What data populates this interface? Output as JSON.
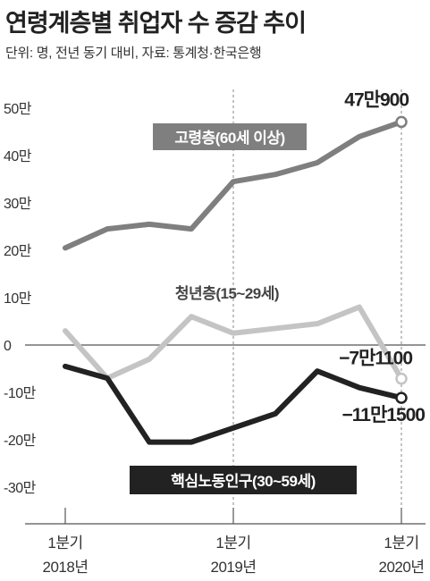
{
  "title": "연령계층별 취업자 수 증감 추이",
  "subtitle": "단위: 명, 전년 동기 대비, 자료: 통계청·한국은행",
  "chart_data": {
    "type": "line",
    "ylim": [
      -35,
      55
    ],
    "yticks": [
      {
        "value": 50,
        "label": "50만"
      },
      {
        "value": 40,
        "label": "40만"
      },
      {
        "value": 30,
        "label": "30만"
      },
      {
        "value": 20,
        "label": "20만"
      },
      {
        "value": 10,
        "label": "10만"
      },
      {
        "value": 0,
        "label": "0"
      },
      {
        "value": -10,
        "label": "-10만"
      },
      {
        "value": -20,
        "label": "-20만"
      },
      {
        "value": -30,
        "label": "-30만"
      }
    ],
    "xticks": [
      {
        "index": 0,
        "line1": "1분기",
        "line2": "2018년"
      },
      {
        "index": 12,
        "line1": "1분기",
        "line2": "2019년"
      },
      {
        "index": 24,
        "line1": "1분기",
        "line2": "2020년"
      }
    ],
    "x_points": 25,
    "grid": false,
    "series": [
      {
        "name": "고령층(60세 이상)",
        "color": "#7f7f7f",
        "label_bg": "#7f7f7f",
        "label_color": "#ffffff",
        "end_label": "47만900",
        "points": [
          [
            0,
            20.5
          ],
          [
            3,
            24.5
          ],
          [
            6,
            25.5
          ],
          [
            9,
            24.5
          ],
          [
            12,
            34.5
          ],
          [
            15,
            36
          ],
          [
            18,
            38.5
          ],
          [
            21,
            44
          ],
          [
            24,
            47.09
          ]
        ]
      },
      {
        "name": "청년층(15~29세)",
        "color": "#c4c4c4",
        "label_bg": "#ffffff",
        "label_color": "#444444",
        "end_label": "−7만1100",
        "points": [
          [
            0,
            3
          ],
          [
            3,
            -7
          ],
          [
            6,
            -3
          ],
          [
            9,
            6
          ],
          [
            12,
            2.5
          ],
          [
            15,
            3.5
          ],
          [
            18,
            4.5
          ],
          [
            21,
            8
          ],
          [
            24,
            -7.11
          ]
        ]
      },
      {
        "name": "핵심노동인구(30~59세)",
        "color": "#222222",
        "label_bg": "#222222",
        "label_color": "#ffffff",
        "end_label": "−11만1500",
        "points": [
          [
            0,
            -4.5
          ],
          [
            3,
            -7
          ],
          [
            6,
            -20.5
          ],
          [
            9,
            -20.5
          ],
          [
            12,
            -17.5
          ],
          [
            15,
            -14.5
          ],
          [
            18,
            -5.5
          ],
          [
            21,
            -9
          ],
          [
            24,
            -11.15
          ]
        ]
      }
    ]
  }
}
